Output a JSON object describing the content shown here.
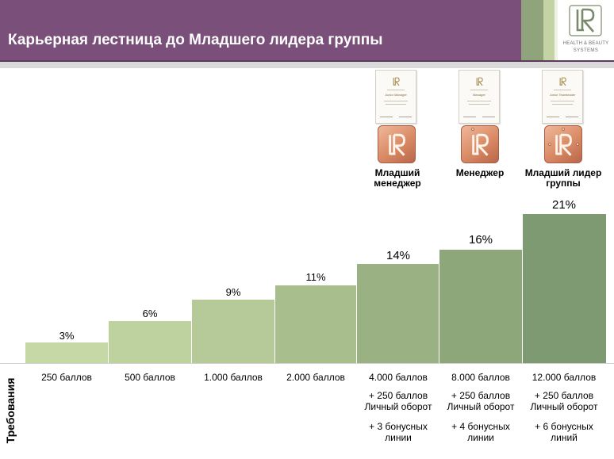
{
  "header": {
    "title": "Карьерная лестница до Младшего лидера группы",
    "logo_text_top": "HEALTH & BEAUTY",
    "logo_text_bottom": "SYSTEMS"
  },
  "levels": [
    {
      "label_line1": "Младший",
      "label_line2": "менеджер",
      "certificate_name": "Junior Manager"
    },
    {
      "label_line1": "Менеджер",
      "label_line2": "",
      "certificate_name": "Manager"
    },
    {
      "label_line1": "Младший лидер",
      "label_line2": "группы",
      "certificate_name": "Junior Teamleader"
    }
  ],
  "steps": [
    {
      "percent": "3%",
      "req_points": "250 баллов",
      "req_turnover": "",
      "req_turnover_2": "",
      "req_lines": "",
      "req_lines_2": ""
    },
    {
      "percent": "6%",
      "req_points": "500 баллов",
      "req_turnover": "",
      "req_turnover_2": "",
      "req_lines": "",
      "req_lines_2": ""
    },
    {
      "percent": "9%",
      "req_points": "1.000 баллов",
      "req_turnover": "",
      "req_turnover_2": "",
      "req_lines": "",
      "req_lines_2": ""
    },
    {
      "percent": "11%",
      "req_points": "2.000 баллов",
      "req_turnover": "",
      "req_turnover_2": "",
      "req_lines": "",
      "req_lines_2": ""
    },
    {
      "percent": "14%",
      "req_points": "4.000 баллов",
      "req_turnover": "+ 250 баллов",
      "req_turnover_2": "Личный оборот",
      "req_lines": "+ 3 бонусных",
      "req_lines_2": "линии"
    },
    {
      "percent": "16%",
      "req_points": "8.000 баллов",
      "req_turnover": "+ 250 баллов",
      "req_turnover_2": "Личный оборот",
      "req_lines": "+ 4 бонусных",
      "req_lines_2": "линии"
    },
    {
      "percent": "21%",
      "req_points": "12.000 баллов",
      "req_turnover": "+ 250 баллов",
      "req_turnover_2": "Личный оборот",
      "req_lines": "+ 6 бонусных",
      "req_lines_2": "линий"
    }
  ],
  "requirements_label": "Требования",
  "colors": {
    "header_purple": "#7a4f79",
    "bar_light": "#c4d7a4",
    "bar_dark": "#7e9a72",
    "badge_copper": "#d98a65"
  }
}
